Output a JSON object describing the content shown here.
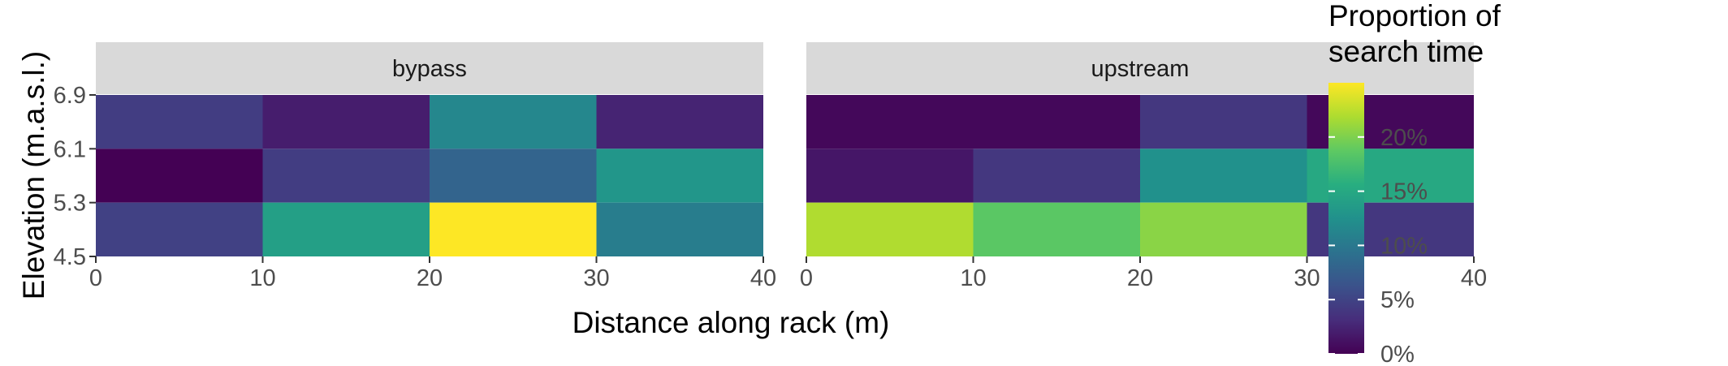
{
  "chart_data": {
    "type": "heatmap",
    "facets": [
      {
        "name": "bypass",
        "cells": [
          {
            "x0": 0,
            "x1": 10,
            "y0": 6.1,
            "y1": 6.9,
            "value": 4.5
          },
          {
            "x0": 10,
            "x1": 20,
            "y0": 6.1,
            "y1": 6.9,
            "value": 2.0
          },
          {
            "x0": 20,
            "x1": 30,
            "y0": 6.1,
            "y1": 6.9,
            "value": 11.5
          },
          {
            "x0": 30,
            "x1": 40,
            "y0": 6.1,
            "y1": 6.9,
            "value": 2.5
          },
          {
            "x0": 0,
            "x1": 10,
            "y0": 5.3,
            "y1": 6.1,
            "value": 0.0
          },
          {
            "x0": 10,
            "x1": 20,
            "y0": 5.3,
            "y1": 6.1,
            "value": 4.5
          },
          {
            "x0": 20,
            "x1": 30,
            "y0": 5.3,
            "y1": 6.1,
            "value": 8.0
          },
          {
            "x0": 30,
            "x1": 40,
            "y0": 5.3,
            "y1": 6.1,
            "value": 13.0
          },
          {
            "x0": 0,
            "x1": 10,
            "y0": 4.5,
            "y1": 5.3,
            "value": 4.8
          },
          {
            "x0": 10,
            "x1": 20,
            "y0": 4.5,
            "y1": 5.3,
            "value": 14.0
          },
          {
            "x0": 20,
            "x1": 30,
            "y0": 4.5,
            "y1": 5.3,
            "value": 25.0
          },
          {
            "x0": 30,
            "x1": 40,
            "y0": 4.5,
            "y1": 5.3,
            "value": 10.5
          }
        ]
      },
      {
        "name": "upstream",
        "cells": [
          {
            "x0": 0,
            "x1": 20,
            "y0": 6.1,
            "y1": 6.9,
            "value": 0.5
          },
          {
            "x0": 20,
            "x1": 30,
            "y0": 6.1,
            "y1": 6.9,
            "value": 4.0
          },
          {
            "x0": 30,
            "x1": 40,
            "y0": 6.1,
            "y1": 6.9,
            "value": 0.5
          },
          {
            "x0": 0,
            "x1": 10,
            "y0": 5.3,
            "y1": 6.1,
            "value": 1.5
          },
          {
            "x0": 10,
            "x1": 20,
            "y0": 5.3,
            "y1": 6.1,
            "value": 4.0
          },
          {
            "x0": 20,
            "x1": 30,
            "y0": 5.3,
            "y1": 6.1,
            "value": 12.5
          },
          {
            "x0": 30,
            "x1": 40,
            "y0": 5.3,
            "y1": 6.1,
            "value": 15.0
          },
          {
            "x0": 0,
            "x1": 10,
            "y0": 4.5,
            "y1": 5.3,
            "value": 22.0
          },
          {
            "x0": 10,
            "x1": 20,
            "y0": 4.5,
            "y1": 5.3,
            "value": 18.5
          },
          {
            "x0": 20,
            "x1": 30,
            "y0": 4.5,
            "y1": 5.3,
            "value": 20.5
          },
          {
            "x0": 30,
            "x1": 40,
            "y0": 4.5,
            "y1": 5.3,
            "value": 4.0
          }
        ]
      }
    ],
    "xlabel": "Distance along rack (m)",
    "ylabel": "Elevation (m.a.s.l.)",
    "xlim": [
      0,
      40
    ],
    "ylim": [
      4.5,
      6.9
    ],
    "x_ticks": [
      "0",
      "10",
      "20",
      "30",
      "40"
    ],
    "x_tick_values": [
      0,
      10,
      20,
      30,
      40
    ],
    "y_ticks": [
      "4.5",
      "5.3",
      "6.1",
      "6.9"
    ],
    "y_tick_values": [
      4.5,
      5.3,
      6.1,
      6.9
    ],
    "legend": {
      "title_lines": [
        "Proportion of",
        "search time"
      ],
      "placement": "right",
      "range": [
        0,
        25
      ],
      "ticks": [
        "0%",
        "5%",
        "10%",
        "15%",
        "20%"
      ],
      "tick_values": [
        0,
        5,
        10,
        15,
        20
      ]
    },
    "colormap": "viridis",
    "colors": {
      "strip_background": "#d9d9d9",
      "tick_color": "#333333",
      "tick_label_color": "#4d4d4d"
    },
    "grid": false
  }
}
